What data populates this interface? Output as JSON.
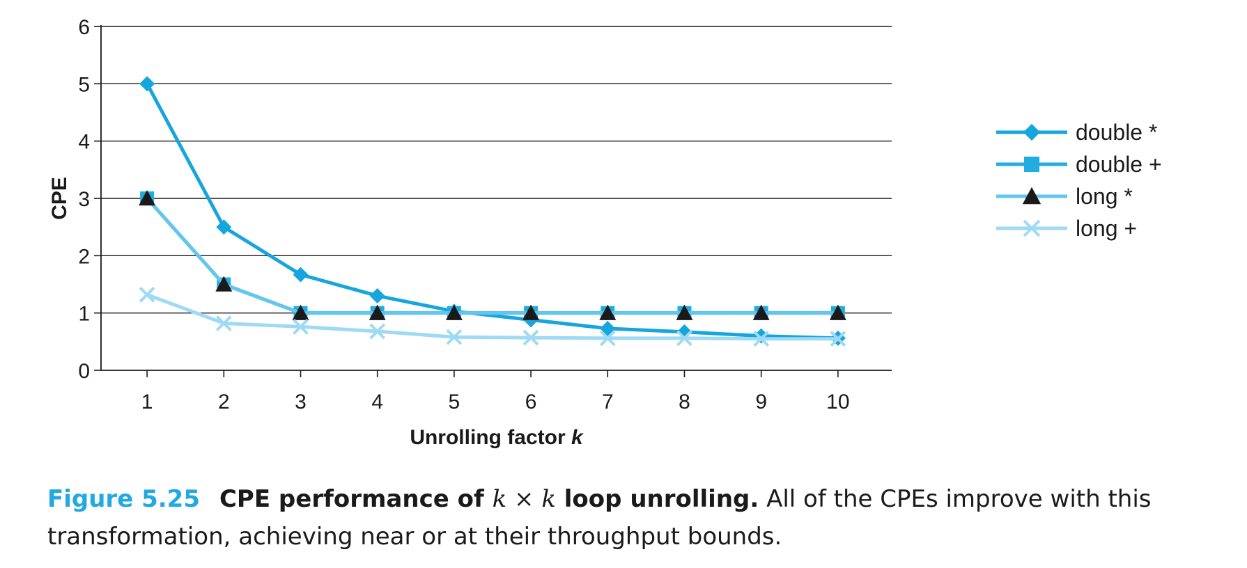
{
  "chart_data": {
    "type": "line",
    "xlabel": "Unrolling factor ",
    "xlabel_var": "k",
    "ylabel": "CPE",
    "x": [
      1,
      2,
      3,
      4,
      5,
      6,
      7,
      8,
      9,
      10
    ],
    "xlim": [
      0.4,
      10.7
    ],
    "ylim": [
      0,
      6
    ],
    "yticks": [
      0,
      1,
      2,
      3,
      4,
      5,
      6
    ],
    "grid": "horizontal",
    "legend_position": "right",
    "series": [
      {
        "name": "double *",
        "marker": "diamond",
        "color": "#17a5dd",
        "values": [
          5.0,
          2.5,
          1.67,
          1.3,
          1.03,
          0.88,
          0.73,
          0.67,
          0.6,
          0.56
        ]
      },
      {
        "name": "double +",
        "marker": "square",
        "color": "#21ade2",
        "values": [
          3.0,
          1.5,
          1.0,
          1.0,
          1.0,
          1.0,
          1.0,
          1.0,
          1.0,
          1.0
        ]
      },
      {
        "name": "long *",
        "marker": "triangle",
        "color": "#63c6ee",
        "values": [
          3.0,
          1.5,
          1.0,
          1.0,
          1.0,
          1.0,
          1.0,
          1.0,
          1.0,
          1.0
        ]
      },
      {
        "name": "long +",
        "marker": "x",
        "color": "#9fdaf4",
        "values": [
          1.32,
          0.82,
          0.76,
          0.68,
          0.58,
          0.57,
          0.56,
          0.56,
          0.55,
          0.55
        ]
      }
    ]
  },
  "caption": {
    "figure_number": "Figure 5.25",
    "title_part1": "CPE performance of ",
    "title_math": "k × k",
    "title_part2": " loop unrolling.",
    "body": " All of the CPEs improve with this transformation, achieving near or at their throughput bounds."
  }
}
